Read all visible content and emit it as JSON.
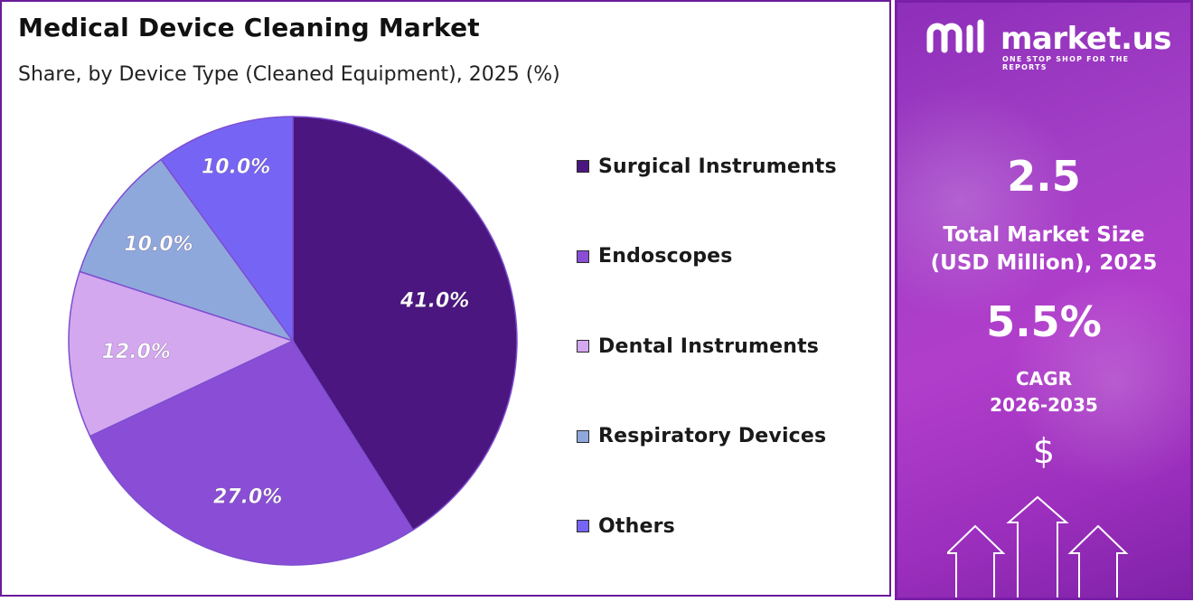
{
  "chart": {
    "title": "Medical Device Cleaning Market",
    "subtitle": "Share, by Device Type (Cleaned Equipment), 2025 (%)"
  },
  "chart_data": {
    "type": "pie",
    "title": "Medical Device Cleaning Market",
    "subtitle": "Share, by Device Type (Cleaned Equipment), 2025 (%)",
    "categories": [
      "Surgical Instruments",
      "Endoscopes",
      "Dental Instruments",
      "Respiratory Devices",
      "Others"
    ],
    "values": [
      41.0,
      27.0,
      12.0,
      10.0,
      10.0
    ],
    "data_labels": [
      "41.0%",
      "27.0%",
      "12.0%",
      "10.0%",
      "10.0%"
    ],
    "colors": [
      "#4b1680",
      "#8a4ed6",
      "#d4a8ef",
      "#8fa8dc",
      "#7665f5"
    ],
    "start_angle": "12 o'clock",
    "direction": "clockwise",
    "legend_position": "right"
  },
  "legend": [
    {
      "label": "Surgical Instruments",
      "color": "#4b1680"
    },
    {
      "label": "Endoscopes",
      "color": "#8a4ed6"
    },
    {
      "label": "Dental Instruments",
      "color": "#d4a8ef"
    },
    {
      "label": "Respiratory Devices",
      "color": "#8fa8dc"
    },
    {
      "label": "Others",
      "color": "#7665f5"
    }
  ],
  "side_panel": {
    "logo_text": "market.us",
    "logo_tagline": "ONE STOP SHOP FOR THE REPORTS",
    "market_size_value": "2.5",
    "market_size_label_line1": "Total Market Size",
    "market_size_label_line2": "(USD Million), 2025",
    "cagr_value": "5.5%",
    "cagr_label_line1": "CAGR",
    "cagr_label_line2": "2026-2035",
    "dollar_symbol": "$",
    "background_color": "#a23ec6",
    "icons": [
      "market-us-logo-icon",
      "dollar-icon",
      "growth-arrows-icon"
    ]
  }
}
